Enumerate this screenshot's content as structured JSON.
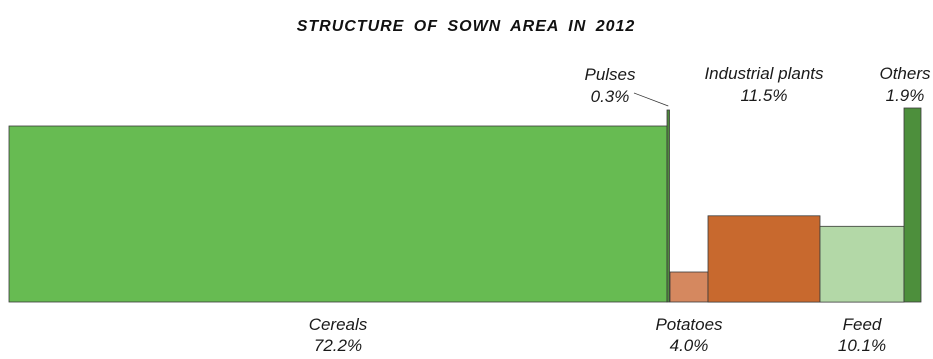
{
  "chart_data": {
    "type": "bar",
    "subtype": "variable-width-stacked",
    "title": "STRUCTURE OF SOWN AREA IN 2012",
    "unit": "%",
    "legend": "none",
    "grid": false,
    "categories": [
      "Cereals",
      "Pulses",
      "Potatoes",
      "Industrial plants",
      "Feed",
      "Others"
    ],
    "values": [
      72.2,
      0.3,
      4.0,
      11.5,
      10.1,
      1.9
    ],
    "value_labels": [
      "72.2%",
      "0.3%",
      "4.0%",
      "11.5%",
      "10.1%",
      "1.9%"
    ],
    "label_positions": [
      "below",
      "above",
      "below",
      "above",
      "below",
      "above"
    ],
    "colors": [
      "#67bb52",
      "#4f8a3d",
      "#d5885f",
      "#c8692e",
      "#b3d8a7",
      "#4d8f3c"
    ]
  }
}
